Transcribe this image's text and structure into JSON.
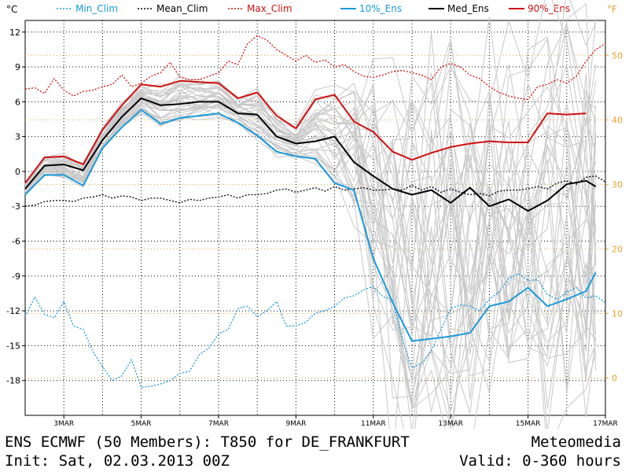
{
  "chart_data": {
    "type": "line",
    "title": "ENS ECMWF (50 Members): T850 for DE_FRANKFURT",
    "left_unit": "°C",
    "right_unit": "°F",
    "x_range_days": [
      2,
      17
    ],
    "ylim": [
      -21,
      13
    ],
    "y_ticks": [
      12,
      9,
      6,
      3,
      0,
      -3,
      -6,
      -9,
      -12,
      -15,
      -18
    ],
    "y_tick_labels": [
      "12",
      "9",
      "6",
      "3",
      "0",
      "-3",
      "-6",
      "-9",
      "-12",
      "-15",
      "-18"
    ],
    "f_ticks": [
      50,
      40,
      30,
      20,
      10,
      0
    ],
    "f_tick_labels": [
      "50",
      "40",
      "30",
      "20",
      "10",
      "0"
    ],
    "x_ticks": [
      3,
      5,
      7,
      9,
      11,
      13,
      15,
      17
    ],
    "x_tick_labels": [
      "3MAR",
      "5MAR",
      "7MAR",
      "9MAR",
      "11MAR",
      "13MAR",
      "15MAR",
      "17MAR"
    ],
    "legend": [
      {
        "key": "min_clim",
        "label": "Min_Clim",
        "color": "#1a9ad8",
        "dash": "dotted"
      },
      {
        "key": "mean_clim",
        "label": "Mean_Clim",
        "color": "#000000",
        "dash": "dotted"
      },
      {
        "key": "max_clim",
        "label": "Max_Clim",
        "color": "#d01010",
        "dash": "dotted"
      },
      {
        "key": "p10",
        "label": "10%_Ens",
        "color": "#1a9ad8",
        "dash": "solid"
      },
      {
        "key": "med",
        "label": "Med_Ens",
        "color": "#000000",
        "dash": "solid"
      },
      {
        "key": "p90",
        "label": "90%_Ens",
        "color": "#d01010",
        "dash": "solid"
      }
    ],
    "series": [
      {
        "key": "min_clim",
        "name": "Min_Clim",
        "x": [
          2,
          2.25,
          2.5,
          2.75,
          3,
          3.25,
          3.5,
          3.75,
          4,
          4.25,
          4.5,
          4.75,
          5,
          5.25,
          5.5,
          5.75,
          6,
          6.25,
          6.5,
          6.75,
          7,
          7.25,
          7.5,
          7.75,
          8,
          8.25,
          8.5,
          8.75,
          9,
          9.25,
          9.5,
          9.75,
          10,
          10.25,
          10.5,
          10.75,
          11,
          11.25,
          11.5,
          11.75,
          12,
          12.25,
          12.5,
          12.75,
          13,
          13.25,
          13.5,
          13.75,
          14,
          14.25,
          14.5,
          14.75,
          15,
          15.25,
          15.5,
          15.75,
          16,
          16.25,
          16.5,
          16.75,
          17
        ],
        "values": [
          -12.5,
          -10.8,
          -12.3,
          -12.6,
          -11.2,
          -13.3,
          -13.6,
          -15.5,
          -16.8,
          -18.0,
          -17.6,
          -16.2,
          -18.6,
          -18.5,
          -18.3,
          -18.0,
          -17.4,
          -17.2,
          -15.8,
          -15.2,
          -14.0,
          -13.6,
          -11.8,
          -11.6,
          -12.5,
          -12.0,
          -11.2,
          -13.3,
          -13.3,
          -13.0,
          -12.2,
          -12.0,
          -11.6,
          -10.9,
          -10.7,
          -10.2,
          -9.9,
          -10.8,
          -11.0,
          -14.5,
          -16.9,
          -16.5,
          -15.4,
          -13.6,
          -11.8,
          -11.5,
          -11.6,
          -12.0,
          -11.0,
          -10.4,
          -9.2,
          -8.8,
          -9.4,
          -9.3,
          -10.6,
          -11.0,
          -10.4,
          -10.0,
          -10.9,
          -10.7,
          -11.3
        ]
      },
      {
        "key": "mean_clim",
        "name": "Mean_Clim",
        "x": [
          2,
          2.25,
          2.5,
          2.75,
          3,
          3.25,
          3.5,
          3.75,
          4,
          4.25,
          4.5,
          4.75,
          5,
          5.25,
          5.5,
          5.75,
          6,
          6.25,
          6.5,
          6.75,
          7,
          7.25,
          7.5,
          7.75,
          8,
          8.25,
          8.5,
          8.75,
          9,
          9.25,
          9.5,
          9.75,
          10,
          10.25,
          10.5,
          10.75,
          11,
          11.25,
          11.5,
          11.75,
          12,
          12.25,
          12.5,
          12.75,
          13,
          13.25,
          13.5,
          13.75,
          14,
          14.25,
          14.5,
          14.75,
          15,
          15.25,
          15.5,
          15.75,
          16,
          16.25,
          16.5,
          16.75,
          17
        ],
        "values": [
          -3.0,
          -2.9,
          -2.6,
          -2.5,
          -2.5,
          -2.6,
          -2.3,
          -2.2,
          -2.0,
          -2.3,
          -2.1,
          -2.2,
          -2.5,
          -2.3,
          -2.3,
          -2.5,
          -2.7,
          -2.4,
          -2.5,
          -2.3,
          -2.2,
          -2.0,
          -2.3,
          -2.0,
          -2.0,
          -1.9,
          -1.6,
          -1.5,
          -1.8,
          -1.6,
          -1.4,
          -1.7,
          -1.3,
          -1.6,
          -1.5,
          -1.4,
          -1.6,
          -1.6,
          -1.5,
          -1.6,
          -1.2,
          -1.6,
          -1.3,
          -1.8,
          -1.5,
          -1.8,
          -2.0,
          -1.9,
          -2.1,
          -1.7,
          -1.6,
          -1.6,
          -1.5,
          -1.3,
          -1.5,
          -1.0,
          -0.8,
          -1.1,
          -0.5,
          -0.4,
          -0.9
        ]
      },
      {
        "key": "max_clim",
        "name": "Max_Clim",
        "x": [
          2,
          2.25,
          2.5,
          2.75,
          3,
          3.25,
          3.5,
          3.75,
          4,
          4.25,
          4.5,
          4.75,
          5,
          5.25,
          5.5,
          5.75,
          6,
          6.25,
          6.5,
          6.75,
          7,
          7.25,
          7.5,
          7.75,
          8,
          8.25,
          8.5,
          8.75,
          9,
          9.25,
          9.5,
          9.75,
          10,
          10.25,
          10.5,
          10.75,
          11,
          11.25,
          11.5,
          11.75,
          12,
          12.25,
          12.5,
          12.75,
          13,
          13.25,
          13.5,
          13.75,
          14,
          14.25,
          14.5,
          14.75,
          15,
          15.25,
          15.5,
          15.75,
          16,
          16.25,
          16.5,
          16.75,
          17
        ],
        "values": [
          7.1,
          7.2,
          6.7,
          8.0,
          7.0,
          6.5,
          6.9,
          7.0,
          7.3,
          7.5,
          8.3,
          7.3,
          7.6,
          8.2,
          8.5,
          9.4,
          8.1,
          7.9,
          7.9,
          8.2,
          8.5,
          9.5,
          9.2,
          11.0,
          11.7,
          11.3,
          10.5,
          10.0,
          9.5,
          10.0,
          9.4,
          9.6,
          9.0,
          9.2,
          8.6,
          8.2,
          8.1,
          8.3,
          8.6,
          8.7,
          8.5,
          8.3,
          7.9,
          9.0,
          9.3,
          9.0,
          8.3,
          8.0,
          7.3,
          6.8,
          6.5,
          6.3,
          6.2,
          7.3,
          7.5,
          7.9,
          7.6,
          8.2,
          9.5,
          10.5,
          11.0
        ]
      },
      {
        "key": "p10",
        "name": "10%_Ens",
        "x": [
          2,
          2.5,
          3,
          3.5,
          4,
          4.5,
          5,
          5.5,
          6,
          6.5,
          7,
          7.5,
          8,
          8.5,
          9,
          9.5,
          10,
          10.5,
          11,
          11.5,
          12,
          12.5,
          13,
          13.5,
          14,
          14.5,
          15,
          15.5,
          16,
          16.5,
          16.75
        ],
        "values": [
          -2.0,
          -0.3,
          -0.3,
          -1.2,
          2.0,
          3.8,
          5.3,
          4.1,
          4.6,
          4.8,
          5.0,
          4.2,
          3.1,
          1.7,
          1.3,
          1.1,
          -1.0,
          -1.6,
          -7.5,
          -11.3,
          -14.6,
          -14.4,
          -14.2,
          -13.9,
          -11.6,
          -11.2,
          -10.0,
          -11.6,
          -11.0,
          -10.3,
          -8.7
        ]
      },
      {
        "key": "med",
        "name": "Med_Ens",
        "x": [
          2,
          2.5,
          3,
          3.5,
          4,
          4.5,
          5,
          5.5,
          6,
          6.5,
          7,
          7.5,
          8,
          8.5,
          9,
          9.5,
          10,
          10.5,
          11,
          11.5,
          12,
          12.5,
          13,
          13.5,
          14,
          14.5,
          15,
          15.5,
          16,
          16.5,
          16.75
        ],
        "values": [
          -1.5,
          0.5,
          0.6,
          0.1,
          2.7,
          4.7,
          6.3,
          5.7,
          5.8,
          6.0,
          6.0,
          5.0,
          4.9,
          3.0,
          2.4,
          2.6,
          3.0,
          0.8,
          -0.4,
          -1.5,
          -2.0,
          -1.6,
          -2.7,
          -1.4,
          -3.0,
          -2.4,
          -3.4,
          -2.5,
          -1.1,
          -0.8,
          -1.3
        ]
      },
      {
        "key": "p90",
        "name": "90%_Ens",
        "x": [
          2,
          2.5,
          3,
          3.5,
          4,
          4.5,
          5,
          5.5,
          6,
          6.5,
          7,
          7.5,
          8,
          8.5,
          9,
          9.5,
          10,
          10.5,
          11,
          11.5,
          12,
          12.5,
          13,
          13.5,
          14,
          14.5,
          15,
          15.5,
          16,
          16.5
        ],
        "values": [
          -1.0,
          1.2,
          1.3,
          0.6,
          3.6,
          5.7,
          7.5,
          7.3,
          7.8,
          7.7,
          7.6,
          6.3,
          6.8,
          4.8,
          3.7,
          6.2,
          6.6,
          4.3,
          3.4,
          1.7,
          1.0,
          1.6,
          2.1,
          2.4,
          2.6,
          2.5,
          2.5,
          5.0,
          4.9,
          5.0
        ]
      }
    ]
  },
  "footer": {
    "title": "ENS ECMWF (50 Members): T850 for DE_FRANKFURT",
    "init": "Init: Sat, 02.03.2013 00Z",
    "source": "Meteomedia",
    "valid": "Valid: 0-360 hours"
  },
  "colors": {
    "cyan": "#1a9ad8",
    "red": "#d01010",
    "orange": "#e8a030",
    "member": "#c8c8c8"
  }
}
